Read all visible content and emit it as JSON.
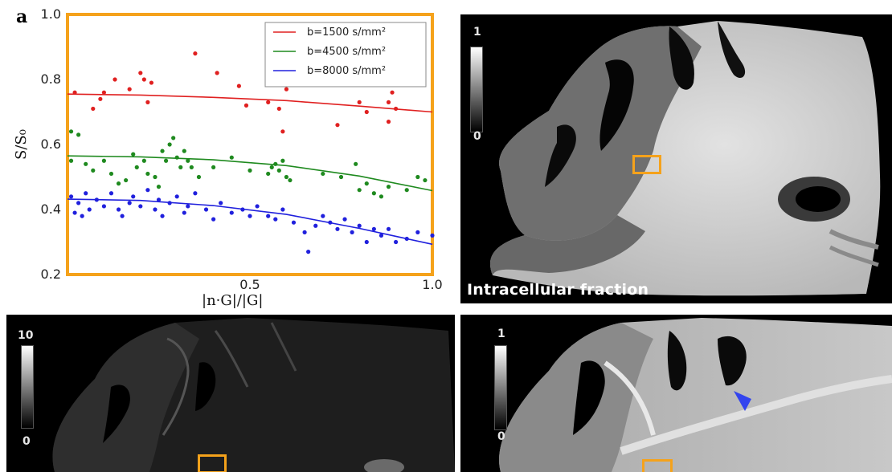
{
  "figure": {
    "panel_letter": "a",
    "colors": {
      "roi_box": "#f5a21b",
      "chart_frame": "#f5a21b",
      "arrowhead": "#3344ee"
    }
  },
  "chart_data": {
    "type": "scatter",
    "title": "",
    "xlabel": "|n·G|/|G|",
    "ylabel": "S/S₀",
    "xlim": [
      0.0,
      1.0
    ],
    "ylim": [
      0.2,
      1.0
    ],
    "x_ticks": [
      "0.5",
      "1.0"
    ],
    "x_tick_values": [
      0.5,
      1.0
    ],
    "y_ticks": [
      "0.2",
      "0.4",
      "0.6",
      "0.8",
      "1.0"
    ],
    "y_tick_values": [
      0.2,
      0.4,
      0.6,
      0.8,
      1.0
    ],
    "grid": false,
    "legend_position": "top-right",
    "series": [
      {
        "name": "b=1500 s/mm²",
        "color": "#e02020",
        "fit": [
          [
            0.0,
            0.755
          ],
          [
            0.2,
            0.752
          ],
          [
            0.4,
            0.745
          ],
          [
            0.6,
            0.735
          ],
          [
            0.8,
            0.718
          ],
          [
            1.0,
            0.7
          ]
        ],
        "points": [
          [
            0.02,
            0.76
          ],
          [
            0.07,
            0.71
          ],
          [
            0.09,
            0.74
          ],
          [
            0.1,
            0.76
          ],
          [
            0.13,
            0.8
          ],
          [
            0.17,
            0.77
          ],
          [
            0.2,
            0.82
          ],
          [
            0.21,
            0.8
          ],
          [
            0.23,
            0.79
          ],
          [
            0.22,
            0.73
          ],
          [
            0.35,
            0.88
          ],
          [
            0.41,
            0.82
          ],
          [
            0.47,
            0.78
          ],
          [
            0.49,
            0.72
          ],
          [
            0.55,
            0.73
          ],
          [
            0.58,
            0.71
          ],
          [
            0.59,
            0.64
          ],
          [
            0.6,
            0.77
          ],
          [
            0.74,
            0.66
          ],
          [
            0.8,
            0.73
          ],
          [
            0.82,
            0.7
          ],
          [
            0.88,
            0.67
          ],
          [
            0.88,
            0.73
          ],
          [
            0.89,
            0.76
          ],
          [
            0.9,
            0.71
          ]
        ]
      },
      {
        "name": "b=4500 s/mm²",
        "color": "#1f8a1f",
        "fit": [
          [
            0.0,
            0.565
          ],
          [
            0.2,
            0.562
          ],
          [
            0.4,
            0.553
          ],
          [
            0.6,
            0.535
          ],
          [
            0.8,
            0.503
          ],
          [
            1.0,
            0.458
          ]
        ],
        "points": [
          [
            0.01,
            0.64
          ],
          [
            0.03,
            0.63
          ],
          [
            0.01,
            0.55
          ],
          [
            0.05,
            0.54
          ],
          [
            0.07,
            0.52
          ],
          [
            0.1,
            0.55
          ],
          [
            0.12,
            0.51
          ],
          [
            0.14,
            0.48
          ],
          [
            0.16,
            0.49
          ],
          [
            0.18,
            0.57
          ],
          [
            0.19,
            0.53
          ],
          [
            0.21,
            0.55
          ],
          [
            0.22,
            0.51
          ],
          [
            0.24,
            0.5
          ],
          [
            0.25,
            0.47
          ],
          [
            0.26,
            0.58
          ],
          [
            0.27,
            0.55
          ],
          [
            0.28,
            0.6
          ],
          [
            0.29,
            0.62
          ],
          [
            0.3,
            0.56
          ],
          [
            0.31,
            0.53
          ],
          [
            0.32,
            0.58
          ],
          [
            0.33,
            0.55
          ],
          [
            0.34,
            0.53
          ],
          [
            0.36,
            0.5
          ],
          [
            0.4,
            0.53
          ],
          [
            0.45,
            0.56
          ],
          [
            0.5,
            0.52
          ],
          [
            0.55,
            0.51
          ],
          [
            0.56,
            0.53
          ],
          [
            0.57,
            0.54
          ],
          [
            0.58,
            0.52
          ],
          [
            0.59,
            0.55
          ],
          [
            0.6,
            0.5
          ],
          [
            0.61,
            0.49
          ],
          [
            0.7,
            0.51
          ],
          [
            0.75,
            0.5
          ],
          [
            0.79,
            0.54
          ],
          [
            0.8,
            0.46
          ],
          [
            0.82,
            0.48
          ],
          [
            0.84,
            0.45
          ],
          [
            0.86,
            0.44
          ],
          [
            0.88,
            0.47
          ],
          [
            0.93,
            0.46
          ],
          [
            0.96,
            0.5
          ],
          [
            0.98,
            0.49
          ]
        ]
      },
      {
        "name": "b=8000 s/mm²",
        "color": "#2020dd",
        "fit": [
          [
            0.0,
            0.432
          ],
          [
            0.2,
            0.428
          ],
          [
            0.4,
            0.412
          ],
          [
            0.6,
            0.385
          ],
          [
            0.8,
            0.342
          ],
          [
            1.0,
            0.293
          ]
        ],
        "points": [
          [
            0.01,
            0.44
          ],
          [
            0.02,
            0.39
          ],
          [
            0.03,
            0.42
          ],
          [
            0.04,
            0.38
          ],
          [
            0.05,
            0.45
          ],
          [
            0.06,
            0.4
          ],
          [
            0.08,
            0.43
          ],
          [
            0.1,
            0.41
          ],
          [
            0.12,
            0.45
          ],
          [
            0.14,
            0.4
          ],
          [
            0.15,
            0.38
          ],
          [
            0.17,
            0.42
          ],
          [
            0.18,
            0.44
          ],
          [
            0.2,
            0.41
          ],
          [
            0.22,
            0.46
          ],
          [
            0.24,
            0.4
          ],
          [
            0.25,
            0.43
          ],
          [
            0.26,
            0.38
          ],
          [
            0.28,
            0.42
          ],
          [
            0.3,
            0.44
          ],
          [
            0.32,
            0.39
          ],
          [
            0.33,
            0.41
          ],
          [
            0.35,
            0.45
          ],
          [
            0.38,
            0.4
          ],
          [
            0.4,
            0.37
          ],
          [
            0.42,
            0.42
          ],
          [
            0.45,
            0.39
          ],
          [
            0.48,
            0.4
          ],
          [
            0.5,
            0.38
          ],
          [
            0.52,
            0.41
          ],
          [
            0.55,
            0.38
          ],
          [
            0.57,
            0.37
          ],
          [
            0.59,
            0.4
          ],
          [
            0.62,
            0.36
          ],
          [
            0.65,
            0.33
          ],
          [
            0.66,
            0.27
          ],
          [
            0.68,
            0.35
          ],
          [
            0.7,
            0.38
          ],
          [
            0.72,
            0.36
          ],
          [
            0.74,
            0.34
          ],
          [
            0.76,
            0.37
          ],
          [
            0.78,
            0.33
          ],
          [
            0.8,
            0.35
          ],
          [
            0.82,
            0.3
          ],
          [
            0.84,
            0.34
          ],
          [
            0.86,
            0.32
          ],
          [
            0.88,
            0.34
          ],
          [
            0.9,
            0.3
          ],
          [
            0.93,
            0.31
          ],
          [
            0.96,
            0.33
          ],
          [
            1.0,
            0.32
          ]
        ]
      }
    ]
  },
  "panels": {
    "top_right": {
      "cb_max": "1",
      "cb_min": "0",
      "caption": "Intracellular fraction"
    },
    "bottom_left": {
      "cb_max": "10",
      "cb_min": "0"
    },
    "bottom_right": {
      "cb_max": "1",
      "cb_min": "0"
    }
  }
}
